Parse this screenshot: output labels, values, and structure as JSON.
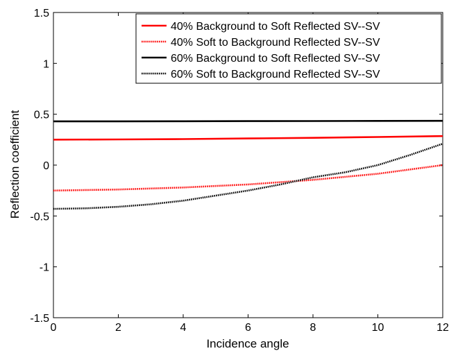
{
  "chart_data": {
    "type": "line",
    "xlabel": "Incidence angle",
    "ylabel": "Reflection coefficient",
    "xlim": [
      0,
      12
    ],
    "ylim": [
      -1.5,
      1.5
    ],
    "xticks": [
      0,
      2,
      4,
      6,
      8,
      10,
      12
    ],
    "yticks": [
      -1.5,
      -1,
      -0.5,
      0,
      0.5,
      1,
      1.5
    ],
    "xtick_labels": [
      "0",
      "2",
      "4",
      "6",
      "8",
      "10",
      "12"
    ],
    "ytick_labels": [
      "-1.5",
      "-1",
      "-0.5",
      "0",
      "0.5",
      "1",
      "1.5"
    ],
    "grid": false,
    "legend_position": "top-right",
    "series": [
      {
        "name": "40% Background to Soft Reflected SV--SV",
        "color": "#ff0000",
        "style": "solid",
        "x": [
          0,
          2,
          4,
          6,
          8,
          10,
          12
        ],
        "y": [
          0.25,
          0.252,
          0.256,
          0.262,
          0.268,
          0.276,
          0.285
        ]
      },
      {
        "name": "40% Soft to Background Reflected SV--SV",
        "color": "#ff0000",
        "style": "dotted",
        "x": [
          0,
          2,
          4,
          6,
          8,
          10,
          12
        ],
        "y": [
          -0.25,
          -0.24,
          -0.22,
          -0.19,
          -0.145,
          -0.085,
          0.0
        ]
      },
      {
        "name": "60% Background to Soft Reflected SV--SV",
        "color": "#000000",
        "style": "solid",
        "x": [
          0,
          2,
          4,
          6,
          8,
          10,
          12
        ],
        "y": [
          0.43,
          0.43,
          0.431,
          0.432,
          0.433,
          0.434,
          0.435
        ]
      },
      {
        "name": "60% Soft to Background Reflected SV--SV",
        "color": "#000000",
        "style": "dotted",
        "x": [
          0,
          1,
          2,
          3,
          4,
          5,
          6,
          7,
          8,
          9,
          10,
          11,
          12
        ],
        "y": [
          -0.43,
          -0.425,
          -0.41,
          -0.385,
          -0.35,
          -0.3,
          -0.25,
          -0.19,
          -0.12,
          -0.07,
          0.0,
          0.1,
          0.21
        ]
      }
    ]
  }
}
